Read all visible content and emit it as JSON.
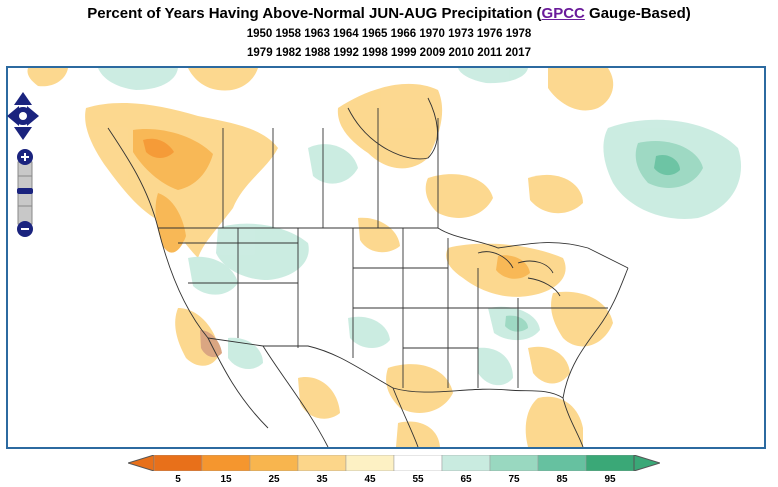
{
  "title": {
    "prefix": "Percent of Years Having Above-Normal JUN-AUG Precipitation (",
    "link": "GPCC",
    "suffix": " Gauge-Based)"
  },
  "years_line1": "1950 1958 1963 1964 1965 1966 1970 1973 1976 1978",
  "years_line2": "1979 1982 1988 1992 1998 1999 2009 2010 2011 2017",
  "legend": {
    "ticks": [
      "5",
      "15",
      "25",
      "35",
      "45",
      "55",
      "65",
      "75",
      "85",
      "95"
    ],
    "colors": [
      "#e8701a",
      "#f5962e",
      "#f8b54e",
      "#fcd68a",
      "#fdf1c4",
      "#ffffff",
      "#c9ebe0",
      "#99d8c0",
      "#66c1a0",
      "#3aa877"
    ]
  },
  "controls": {
    "pan_icon": "pan-arrows-icon",
    "zoom_in": "+",
    "zoom_out": "−"
  }
}
